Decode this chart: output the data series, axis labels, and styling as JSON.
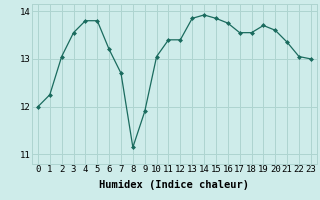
{
  "x": [
    0,
    1,
    2,
    3,
    4,
    5,
    6,
    7,
    8,
    9,
    10,
    11,
    12,
    13,
    14,
    15,
    16,
    17,
    18,
    19,
    20,
    21,
    22,
    23
  ],
  "y": [
    12.0,
    12.25,
    13.05,
    13.55,
    13.8,
    13.8,
    13.2,
    12.7,
    11.15,
    11.9,
    13.05,
    13.4,
    13.4,
    13.85,
    13.92,
    13.85,
    13.75,
    13.55,
    13.55,
    13.7,
    13.6,
    13.35,
    13.05,
    13.0
  ],
  "line_color": "#1a6b5e",
  "marker": "D",
  "marker_size": 2.0,
  "bg_color": "#ceecea",
  "grid_color": "#aed4d0",
  "xlabel": "Humidex (Indice chaleur)",
  "xlim": [
    -0.5,
    23.5
  ],
  "ylim": [
    10.8,
    14.15
  ],
  "yticks": [
    11,
    12,
    13,
    14
  ],
  "xticks": [
    0,
    1,
    2,
    3,
    4,
    5,
    6,
    7,
    8,
    9,
    10,
    11,
    12,
    13,
    14,
    15,
    16,
    17,
    18,
    19,
    20,
    21,
    22,
    23
  ],
  "xlabel_fontsize": 7.5,
  "tick_fontsize": 6.5
}
